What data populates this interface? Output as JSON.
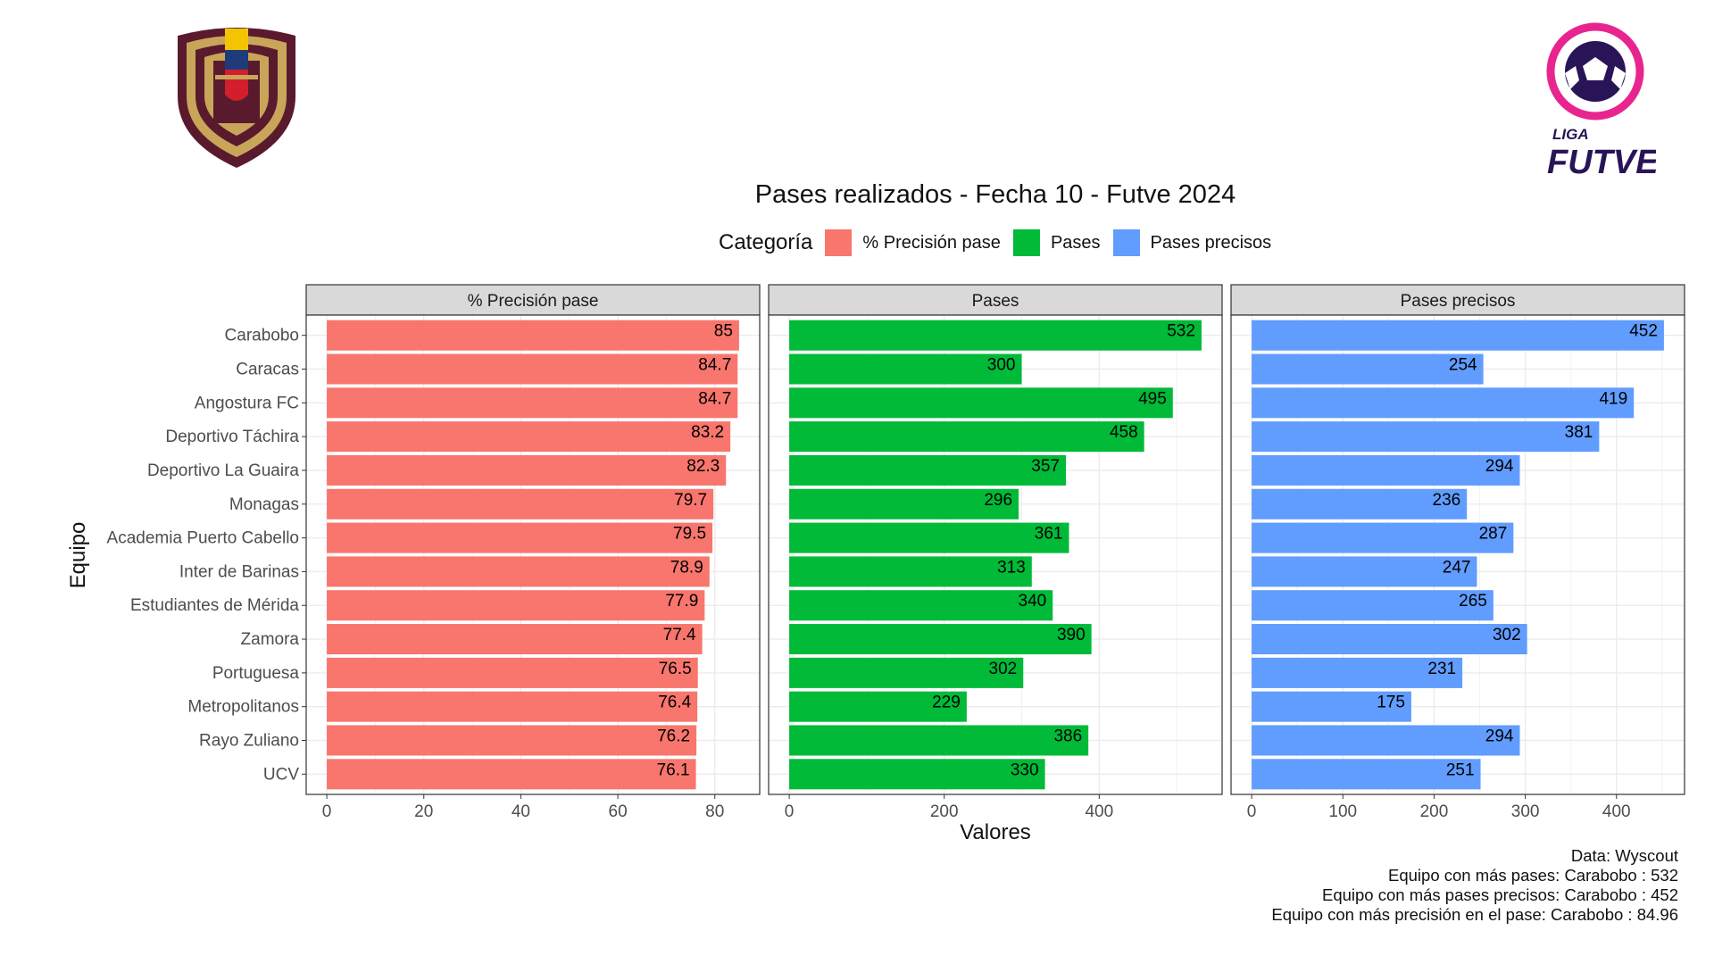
{
  "header": {
    "title": "Pases realizados - Fecha 10 - Futve 2024",
    "legend_title": "Categoría",
    "legend_items": [
      {
        "label": "% Precisión pase",
        "color": "#F8766D"
      },
      {
        "label": "Pases",
        "color": "#00BA38"
      },
      {
        "label": "Pases precisos",
        "color": "#619CFF"
      }
    ]
  },
  "logos": {
    "left_crest": "venezuela-federation-crest",
    "right_logo_text_top": "LIGA",
    "right_logo_text_bottom": "FUTVE"
  },
  "caption": {
    "source": "Data: Wyscout",
    "line1": "Equipo con más pases: Carabobo : 532",
    "line2": "Equipo con más pases precisos: Carabobo : 452",
    "line3": "Equipo con más precisión en el pase: Carabobo : 84.96"
  },
  "chart_data": {
    "type": "bar",
    "orientation": "horizontal",
    "ylabel": "Equipo",
    "xlabel": "Valores",
    "grid": true,
    "legend_placement": "top",
    "categories": [
      "Carabobo",
      "Caracas",
      "Angostura FC",
      "Deportivo Táchira",
      "Deportivo La Guaira",
      "Monagas",
      "Academia Puerto Cabello",
      "Inter de Barinas",
      "Estudiantes de Mérida",
      "Zamora",
      "Portuguesa",
      "Metropolitanos",
      "Rayo Zuliano",
      "UCV"
    ],
    "panels": [
      {
        "name": "% Precisión pase",
        "color": "#F8766D",
        "xlim": [
          -4.25,
          89.25
        ],
        "ticks": [
          0,
          20,
          40,
          60,
          80
        ],
        "values": [
          85,
          84.7,
          84.7,
          83.2,
          82.3,
          79.7,
          79.5,
          78.9,
          77.9,
          77.4,
          76.5,
          76.4,
          76.2,
          76.1
        ]
      },
      {
        "name": "Pases",
        "color": "#00BA38",
        "xlim": [
          -26.6,
          558.6
        ],
        "ticks": [
          0,
          200,
          400
        ],
        "values": [
          532,
          300,
          495,
          458,
          357,
          296,
          361,
          313,
          340,
          390,
          302,
          229,
          386,
          330
        ]
      },
      {
        "name": "Pases precisos",
        "color": "#619CFF",
        "xlim": [
          -22.6,
          474.6
        ],
        "ticks": [
          0,
          100,
          200,
          300,
          400
        ],
        "values": [
          452,
          254,
          419,
          381,
          294,
          236,
          287,
          247,
          265,
          302,
          231,
          175,
          294,
          251
        ]
      }
    ]
  }
}
